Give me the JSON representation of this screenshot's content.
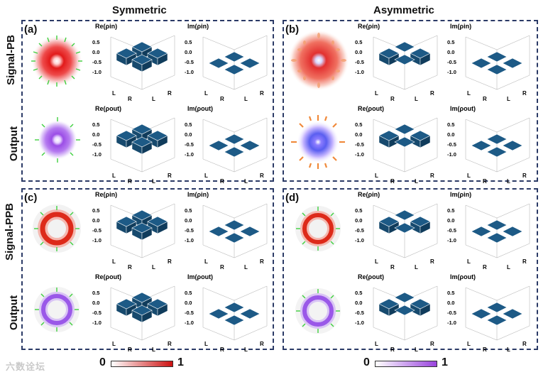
{
  "columns": {
    "left": "Symmetric",
    "right": "Asymmetric"
  },
  "rows": {
    "pb": "Signal-PB",
    "ppb": "Signal-PPB",
    "out": "Output"
  },
  "panels": {
    "a": "(a)",
    "b": "(b)",
    "c": "(c)",
    "d": "(d)"
  },
  "matrix_titles": {
    "re_in": "Re(ρin)",
    "im_in": "Im(ρin)",
    "re_out": "Re(ρout)",
    "im_out": "Im(ρout)"
  },
  "z_ticks": [
    "0.5",
    "0.0",
    "-0.5",
    "-1.0"
  ],
  "basis_labels": [
    "L",
    "R"
  ],
  "colorbars": {
    "red": {
      "min": "0",
      "max": "1",
      "color": "#cc1111"
    },
    "purple": {
      "min": "0",
      "max": "1",
      "color": "#9944dd"
    }
  },
  "colors": {
    "bar": "#1d5a86",
    "panel_border": "#2b3a66"
  },
  "watermark": "六数诠坛"
}
